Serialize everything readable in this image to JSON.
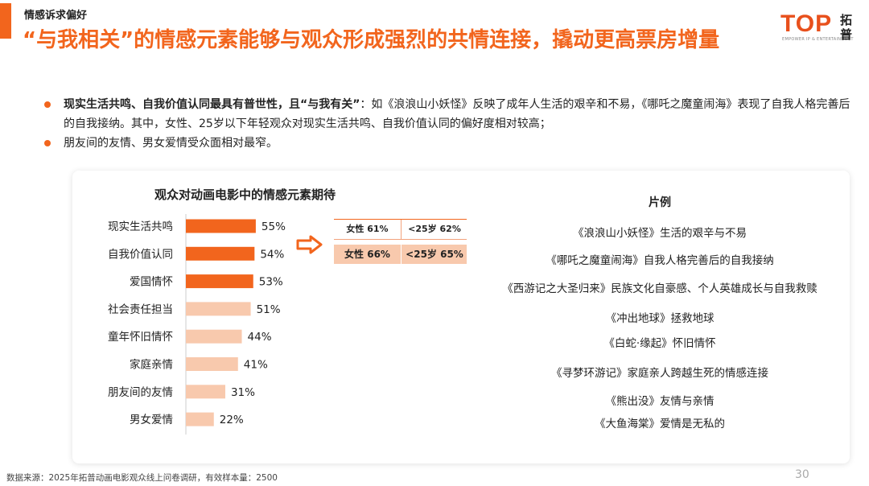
{
  "header": {
    "section_tag": "情感诉求偏好",
    "headline": "“与我相关”的情感元素能够与观众形成强烈的共情连接，撬动更高票房增量"
  },
  "logo": {
    "main": "TOP",
    "sub": "EMPOWER IP & ENTERTAINMENT",
    "cn": "拓普"
  },
  "bullets": [
    {
      "bold": "现实生活共鸣、自我价值认同最具有普世性，且“与我有关”",
      "text": "：如《浪浪山小妖怪》反映了成年人生活的艰辛和不易，《哪吒之魔童闹海》表现了自我人格完善后的自我接纳。其中，女性、25岁以下年轻观众对现实生活共鸣、自我价值认同的偏好度相对较高；"
    },
    {
      "bold": "",
      "text": "朋友间的友情、男女爱情受众面相对最窄。"
    }
  ],
  "colors": {
    "accent": "#f2651d",
    "bar_light": "#f8c9ad"
  },
  "chart_data": {
    "type": "bar",
    "orientation": "horizontal",
    "title": "观众对动画电影中的情感元素期待",
    "categories": [
      "现实生活共鸣",
      "自我价值认同",
      "爱国情怀",
      "社会责任担当",
      "童年怀旧情怀",
      "家庭亲情",
      "朋友间的友情",
      "男女爱情"
    ],
    "values": [
      55,
      54,
      53,
      51,
      44,
      41,
      31,
      22
    ],
    "value_labels": [
      "55%",
      "54%",
      "53%",
      "51%",
      "44%",
      "41%",
      "31%",
      "22%"
    ],
    "highlighted_count": 3,
    "unit": "%"
  },
  "comparison": {
    "rows": [
      {
        "female": "女性 61%",
        "under25": "<25岁 62%"
      },
      {
        "female": "女性 66%",
        "under25": "<25岁 65%"
      }
    ]
  },
  "examples": {
    "title": "片例",
    "items": [
      "《浪浪山小妖怪》生活的艰辛与不易",
      "《哪吒之魔童闹海》自我人格完善后的自我接纳",
      "《西游记之大圣归来》民族文化自豪感、个人英雄成长与自我救赎",
      "《冲出地球》拯救地球",
      "《白蛇·缘起》怀旧情怀",
      "《寻梦环游记》家庭亲人跨越生死的情感连接",
      "《熊出没》友情与亲情",
      "《大鱼海棠》爱情是无私的"
    ]
  },
  "footer": {
    "source": "数据来源：2025年拓普动画电影观众线上问卷调研，有效样本量：2500",
    "page": "30"
  }
}
